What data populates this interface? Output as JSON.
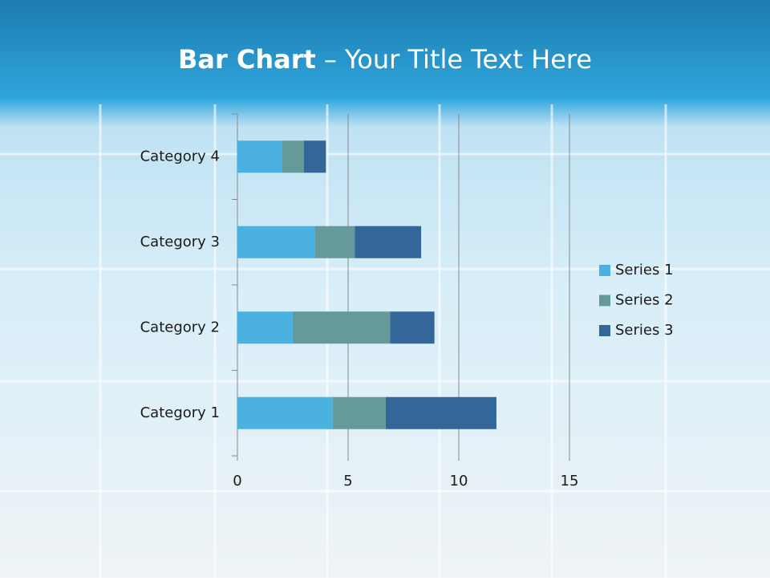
{
  "chart_data": {
    "type": "stacked-bar-horizontal",
    "title": [
      "Bar Chart",
      "– Your Title Text Here"
    ],
    "categories": [
      "Category 1",
      "Category 2",
      "Category 3",
      "Category 4"
    ],
    "series": [
      {
        "name": "Series 1",
        "color": "#4bb1e0",
        "values": [
          4.3,
          2.5,
          3.5,
          2
        ]
      },
      {
        "name": "Series 2",
        "color": "#66999a",
        "values": [
          2.4,
          4.4,
          1.8,
          1
        ]
      },
      {
        "name": "Series 3",
        "color": "#336699",
        "values": [
          5,
          2,
          3,
          1
        ]
      }
    ],
    "xlim": [
      0,
      15
    ],
    "xticks": [
      0,
      5,
      10,
      15
    ],
    "grid": true,
    "legend": "right"
  }
}
